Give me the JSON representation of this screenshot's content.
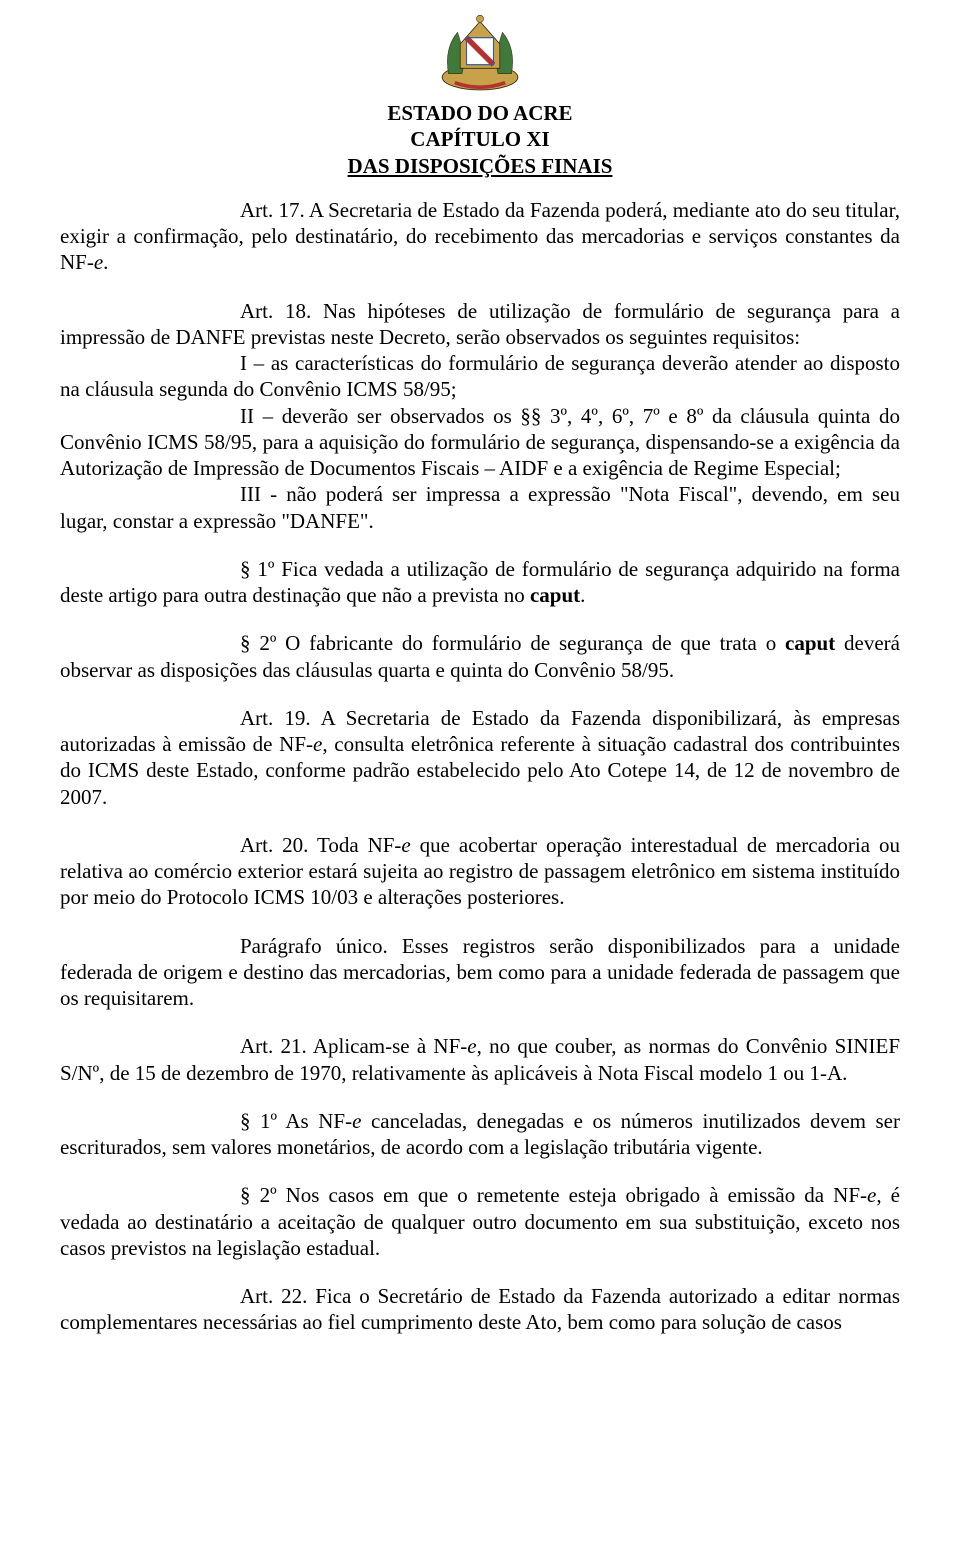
{
  "header": {
    "state": "ESTADO DO ACRE",
    "chapter": "CAPÍTULO XI",
    "section": "DAS DISPOSIÇÕES FINAIS"
  },
  "crest": {
    "colors": {
      "gold": "#c7a24a",
      "red": "#b53030",
      "green": "#3f7a3a",
      "blue": "#2e5aa0",
      "white": "#ffffff",
      "dark": "#3a2a12"
    }
  },
  "paragraphs": [
    {
      "segments": [
        {
          "text": "Art. 17.  A Secretaria de Estado da Fazenda poderá, mediante ato do seu titular, exigir a confirmação, pelo destinatário, do recebimento das mercadorias e serviços constantes da NF-"
        },
        {
          "text": "e",
          "italic": true
        },
        {
          "text": "."
        }
      ]
    },
    {
      "segments": [
        {
          "text": "Art. 18.  Nas hipóteses de utilização de formulário de segurança para a impressão de DANFE previstas neste Decreto, serão observados os seguintes requisitos:"
        }
      ]
    },
    {
      "noIndent": true,
      "segments": [
        {
          "text": "I – as características do formulário de segurança deverão atender ao disposto na cláusula segunda do Convênio ICMS 58/95;"
        }
      ]
    },
    {
      "noIndent": true,
      "segments": [
        {
          "text": "II – deverão ser observados os §§ 3º, 4º, 6º, 7º e 8º da cláusula quinta do Convênio ICMS 58/95, para a aquisição do formulário de segurança, dispensando-se a exigência da Autorização de Impressão de Documentos Fiscais – AIDF e a exigência de Regime Especial;"
        }
      ]
    },
    {
      "noIndent": true,
      "segments": [
        {
          "text": "III - não poderá ser impressa a expressão \"Nota Fiscal\", devendo, em seu lugar, constar a expressão \"DANFE\"."
        }
      ]
    },
    {
      "segments": [
        {
          "text": "§ 1º  Fica vedada a utilização de formulário de segurança adquirido na forma deste artigo para outra destinação que não a prevista no "
        },
        {
          "text": "caput",
          "bold": true
        },
        {
          "text": "."
        }
      ]
    },
    {
      "segments": [
        {
          "text": "§ 2º  O fabricante do formulário de segurança de que trata o "
        },
        {
          "text": "caput",
          "bold": true
        },
        {
          "text": " deverá observar as disposições das cláusulas quarta e quinta do Convênio 58/95."
        }
      ]
    },
    {
      "segments": [
        {
          "text": "Art. 19.   A Secretaria de Estado da Fazenda disponibilizará, às empresas autorizadas à emissão de NF-"
        },
        {
          "text": "e",
          "italic": true
        },
        {
          "text": ", consulta eletrônica referente à situação cadastral dos contribuintes do ICMS deste Estado, conforme padrão estabelecido pelo Ato Cotepe 14, de 12 de novembro de 2007."
        }
      ]
    },
    {
      "segments": [
        {
          "text": "Art. 20.   Toda NF-"
        },
        {
          "text": "e",
          "italic": true
        },
        {
          "text": " que acobertar operação interestadual de mercadoria ou relativa ao comércio exterior estará sujeita ao registro de passagem eletrônico em sistema instituído por meio do Protocolo ICMS 10/03 e alterações posteriores."
        }
      ]
    },
    {
      "segments": [
        {
          "text": "Parágrafo único. Esses registros serão disponibilizados para a unidade federada de origem e destino das mercadorias, bem como para a unidade federada de passagem que os requisitarem."
        }
      ]
    },
    {
      "segments": [
        {
          "text": "Art. 21.  Aplicam-se à NF-"
        },
        {
          "text": "e",
          "italic": true
        },
        {
          "text": ", no que couber, as normas do Convênio SINIEF S/Nº, de 15 de dezembro de 1970, relativamente às aplicáveis à Nota Fiscal modelo 1 ou 1-A."
        }
      ]
    },
    {
      "segments": [
        {
          "text": "§ 1º   As NF-"
        },
        {
          "text": "e",
          "italic": true
        },
        {
          "text": " canceladas, denegadas e os números inutilizados devem ser escriturados, sem valores monetários, de acordo com a legislação tributária vigente."
        }
      ]
    },
    {
      "segments": [
        {
          "text": "§ 2º  Nos casos em que o remetente esteja obrigado à emissão da NF-"
        },
        {
          "text": "e",
          "italic": true
        },
        {
          "text": ", é vedada ao destinatário a aceitação de qualquer outro documento em sua substituição, exceto nos casos previstos na legislação estadual."
        }
      ]
    },
    {
      "segments": [
        {
          "text": "Art. 22.  Fica o Secretário de Estado da Fazenda autorizado a editar normas complementares necessárias ao fiel cumprimento deste Ato, bem como para solução de casos"
        }
      ]
    }
  ],
  "merge": {
    "1": [
      1,
      2,
      3,
      4
    ]
  }
}
